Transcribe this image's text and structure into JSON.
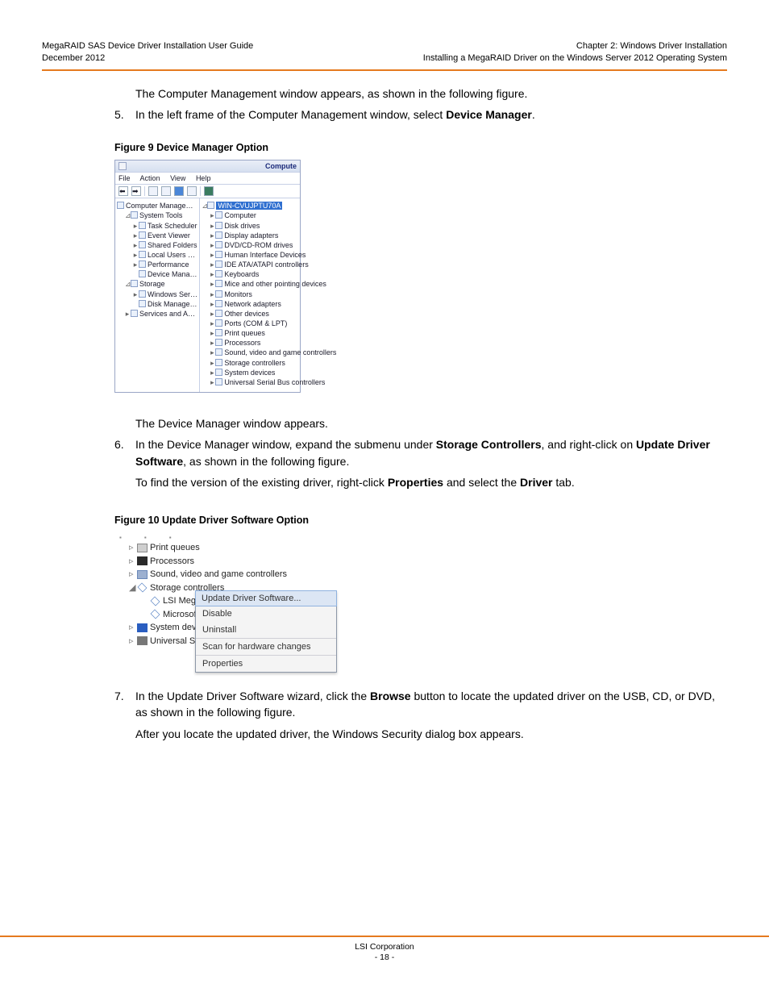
{
  "header": {
    "left_line1": "MegaRAID SAS Device Driver Installation User Guide",
    "left_line2": "December 2012",
    "right_line1": "Chapter 2: Windows Driver Installation",
    "right_line2": "Installing a MegaRAID Driver on the Windows Server 2012 Operating System"
  },
  "rule_color": "#e57a1f",
  "body": {
    "para1": "The Computer Management window appears, as shown in the following figure.",
    "step5_num": "5.",
    "step5_a": "In the left frame of the Computer Management window, select ",
    "step5_bold": "Device Manager",
    "step5_c": ".",
    "fig9_caption": "Figure 9  Device Manager Option",
    "para2": "The Device Manager window appears.",
    "step6_num": "6.",
    "step6_a": "In the Device Manager window, expand the submenu under ",
    "step6_b": "Storage Controllers",
    "step6_c": ", and right-click on ",
    "step6_d": "Update Driver Software",
    "step6_e": ", as shown in the following figure.",
    "step6_p2_a": "To find the version of the existing driver, right-click ",
    "step6_p2_b": "Properties",
    "step6_p2_c": " and select the ",
    "step6_p2_d": "Driver",
    "step6_p2_e": " tab.",
    "fig10_caption": "Figure 10  Update Driver Software Option",
    "step7_num": "7.",
    "step7_a": "In the Update Driver Software wizard, click the ",
    "step7_b": "Browse",
    "step7_c": " button to locate the updated driver on the USB, CD, or DVD, as shown in the following figure.",
    "step7_p2": "After you locate the updated driver, the Windows Security dialog box appears."
  },
  "fig9": {
    "title_right": "Compute",
    "menu": [
      "File",
      "Action",
      "View",
      "Help"
    ],
    "left_root": "Computer Management (Local",
    "left_tree": [
      {
        "l": 1,
        "exp": "⊿",
        "t": "System Tools",
        "ic": true
      },
      {
        "l": 2,
        "exp": "▸",
        "t": "Task Scheduler",
        "ic": true
      },
      {
        "l": 2,
        "exp": "▸",
        "t": "Event Viewer",
        "ic": true
      },
      {
        "l": 2,
        "exp": "▸",
        "t": "Shared Folders",
        "ic": true
      },
      {
        "l": 2,
        "exp": "▸",
        "t": "Local Users and Groups",
        "ic": true
      },
      {
        "l": 2,
        "exp": "▸",
        "t": "Performance",
        "ic": true
      },
      {
        "l": 2,
        "exp": "",
        "t": "Device Manager",
        "ic": true
      },
      {
        "l": 1,
        "exp": "⊿",
        "t": "Storage",
        "ic": true
      },
      {
        "l": 2,
        "exp": "▸",
        "t": "Windows Server Backup",
        "ic": true
      },
      {
        "l": 2,
        "exp": "",
        "t": "Disk Management",
        "ic": true
      },
      {
        "l": 1,
        "exp": "▸",
        "t": "Services and Applications",
        "ic": true
      }
    ],
    "right_root": "WIN-CVUJPTU70A",
    "right_tree": [
      {
        "exp": "▸",
        "t": "Computer"
      },
      {
        "exp": "▸",
        "t": "Disk drives"
      },
      {
        "exp": "▸",
        "t": "Display adapters"
      },
      {
        "exp": "▸",
        "t": "DVD/CD-ROM drives"
      },
      {
        "exp": "▸",
        "t": "Human Interface Devices"
      },
      {
        "exp": "▸",
        "t": "IDE ATA/ATAPI controllers"
      },
      {
        "exp": "▸",
        "t": "Keyboards"
      },
      {
        "exp": "▸",
        "t": "Mice and other pointing devices"
      },
      {
        "exp": "▸",
        "t": "Monitors"
      },
      {
        "exp": "▸",
        "t": "Network adapters"
      },
      {
        "exp": "▸",
        "t": "Other devices"
      },
      {
        "exp": "▸",
        "t": "Ports (COM & LPT)"
      },
      {
        "exp": "▸",
        "t": "Print queues"
      },
      {
        "exp": "▸",
        "t": "Processors"
      },
      {
        "exp": "▸",
        "t": "Sound, video and game controllers"
      },
      {
        "exp": "▸",
        "t": "Storage controllers"
      },
      {
        "exp": "▸",
        "t": "System devices"
      },
      {
        "exp": "▸",
        "t": "Universal Serial Bus controllers"
      }
    ]
  },
  "fig10": {
    "tree": [
      {
        "ind": 1,
        "exp": "▹",
        "ic": "ic-print",
        "t": "Print queues"
      },
      {
        "ind": 1,
        "exp": "▹",
        "ic": "ic-proc",
        "t": "Processors"
      },
      {
        "ind": 1,
        "exp": "▹",
        "ic": "ic-sound",
        "t": "Sound, video and game controllers"
      },
      {
        "ind": 1,
        "exp": "◢",
        "ic": "ic-store",
        "t": "Storage controllers"
      },
      {
        "ind": 2,
        "exp": "",
        "ic": "ic-chip",
        "t": "LSI MegaR"
      },
      {
        "ind": 2,
        "exp": "",
        "ic": "ic-chip",
        "t": "Microsoft "
      },
      {
        "ind": 1,
        "exp": "▹",
        "ic": "ic-sys",
        "t": "System device"
      },
      {
        "ind": 1,
        "exp": "▹",
        "ic": "ic-usb",
        "t": "Universal Seria"
      }
    ],
    "ctx": [
      {
        "t": "Update Driver Software...",
        "hl": true
      },
      {
        "t": "Disable"
      },
      {
        "t": "Uninstall"
      },
      {
        "sep": true
      },
      {
        "t": "Scan for hardware changes"
      },
      {
        "sep": true
      },
      {
        "t": "Properties"
      }
    ]
  },
  "footer": {
    "l1": "LSI Corporation",
    "l2": "- 18 -"
  }
}
